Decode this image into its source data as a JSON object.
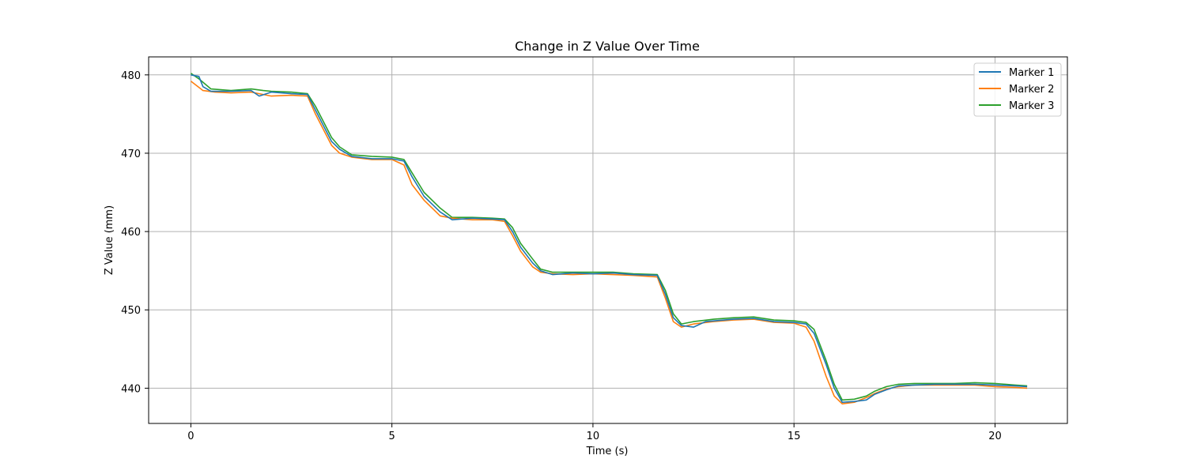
{
  "chart_data": {
    "type": "line",
    "title": "Change in Z Value Over Time",
    "xlabel": "Time (s)",
    "ylabel": "Z Value (mm)",
    "xlim": [
      -1.05,
      21.8
    ],
    "ylim": [
      435.5,
      482.3
    ],
    "xticks": [
      0,
      5,
      10,
      15,
      20
    ],
    "yticks": [
      440,
      450,
      460,
      470,
      480
    ],
    "grid": true,
    "legend_position": "top-right",
    "series": [
      {
        "name": "Marker 1",
        "color": "#1f77b4",
        "points": [
          [
            0,
            480
          ],
          [
            0.2,
            479.8
          ],
          [
            0.3,
            478.5
          ],
          [
            0.5,
            477.9
          ],
          [
            1.0,
            477.9
          ],
          [
            1.5,
            478.0
          ],
          [
            1.7,
            477.3
          ],
          [
            2.0,
            477.8
          ],
          [
            2.5,
            477.6
          ],
          [
            2.9,
            477.5
          ],
          [
            3.1,
            475.5
          ],
          [
            3.3,
            473.5
          ],
          [
            3.5,
            471.5
          ],
          [
            3.7,
            470.5
          ],
          [
            4.0,
            469.6
          ],
          [
            4.5,
            469.3
          ],
          [
            5.0,
            469.3
          ],
          [
            5.3,
            469.0
          ],
          [
            5.5,
            467.0
          ],
          [
            5.8,
            464.5
          ],
          [
            6.2,
            462.5
          ],
          [
            6.5,
            461.5
          ],
          [
            7.0,
            461.7
          ],
          [
            7.5,
            461.6
          ],
          [
            7.8,
            461.5
          ],
          [
            8.0,
            460.0
          ],
          [
            8.2,
            458.0
          ],
          [
            8.5,
            456.0
          ],
          [
            8.7,
            455.0
          ],
          [
            9.0,
            454.5
          ],
          [
            9.5,
            454.7
          ],
          [
            10.0,
            454.6
          ],
          [
            10.5,
            454.7
          ],
          [
            11.0,
            454.5
          ],
          [
            11.6,
            454.4
          ],
          [
            11.8,
            452.0
          ],
          [
            12.0,
            449.0
          ],
          [
            12.2,
            448.0
          ],
          [
            12.5,
            447.8
          ],
          [
            12.8,
            448.5
          ],
          [
            13.5,
            448.8
          ],
          [
            14.0,
            448.9
          ],
          [
            14.5,
            448.5
          ],
          [
            15.0,
            448.4
          ],
          [
            15.3,
            448.2
          ],
          [
            15.5,
            447.0
          ],
          [
            15.8,
            443.0
          ],
          [
            16.0,
            440.0
          ],
          [
            16.2,
            438.2
          ],
          [
            16.5,
            438.3
          ],
          [
            16.8,
            438.5
          ],
          [
            17.0,
            439.2
          ],
          [
            17.3,
            439.8
          ],
          [
            17.6,
            440.3
          ],
          [
            18.0,
            440.4
          ],
          [
            18.5,
            440.5
          ],
          [
            19.0,
            440.5
          ],
          [
            19.5,
            440.5
          ],
          [
            20.0,
            440.4
          ],
          [
            20.5,
            440.3
          ],
          [
            20.8,
            440.2
          ]
        ]
      },
      {
        "name": "Marker 2",
        "color": "#ff7f0e",
        "points": [
          [
            0,
            479.2
          ],
          [
            0.3,
            478.0
          ],
          [
            0.6,
            477.8
          ],
          [
            1.0,
            477.7
          ],
          [
            1.5,
            477.8
          ],
          [
            2.0,
            477.3
          ],
          [
            2.5,
            477.4
          ],
          [
            2.9,
            477.3
          ],
          [
            3.1,
            475.0
          ],
          [
            3.3,
            473.0
          ],
          [
            3.5,
            471.0
          ],
          [
            3.7,
            470.0
          ],
          [
            4.0,
            469.5
          ],
          [
            4.5,
            469.2
          ],
          [
            5.0,
            469.2
          ],
          [
            5.3,
            468.5
          ],
          [
            5.5,
            466.0
          ],
          [
            5.8,
            464.0
          ],
          [
            6.2,
            462.0
          ],
          [
            6.5,
            461.7
          ],
          [
            7.0,
            461.5
          ],
          [
            7.5,
            461.5
          ],
          [
            7.8,
            461.3
          ],
          [
            8.0,
            459.5
          ],
          [
            8.2,
            457.5
          ],
          [
            8.5,
            455.5
          ],
          [
            8.7,
            454.8
          ],
          [
            9.0,
            454.6
          ],
          [
            9.5,
            454.5
          ],
          [
            10.0,
            454.6
          ],
          [
            10.5,
            454.5
          ],
          [
            11.0,
            454.4
          ],
          [
            11.6,
            454.2
          ],
          [
            11.8,
            451.5
          ],
          [
            12.0,
            448.5
          ],
          [
            12.2,
            447.8
          ],
          [
            12.5,
            448.2
          ],
          [
            13.0,
            448.5
          ],
          [
            13.5,
            448.7
          ],
          [
            14.0,
            448.8
          ],
          [
            14.5,
            448.4
          ],
          [
            15.0,
            448.3
          ],
          [
            15.3,
            447.8
          ],
          [
            15.5,
            446.0
          ],
          [
            15.8,
            441.5
          ],
          [
            16.0,
            439.0
          ],
          [
            16.2,
            438.0
          ],
          [
            16.5,
            438.2
          ],
          [
            16.8,
            438.8
          ],
          [
            17.0,
            439.3
          ],
          [
            17.3,
            439.9
          ],
          [
            17.6,
            440.2
          ],
          [
            18.0,
            440.4
          ],
          [
            18.5,
            440.4
          ],
          [
            19.0,
            440.4
          ],
          [
            19.5,
            440.4
          ],
          [
            20.0,
            440.2
          ],
          [
            20.5,
            440.1
          ],
          [
            20.8,
            440.0
          ]
        ]
      },
      {
        "name": "Marker 3",
        "color": "#2ca02c",
        "points": [
          [
            0,
            480.2
          ],
          [
            0.2,
            479.5
          ],
          [
            0.5,
            478.2
          ],
          [
            1.0,
            478.0
          ],
          [
            1.5,
            478.2
          ],
          [
            1.8,
            478.0
          ],
          [
            2.0,
            477.9
          ],
          [
            2.5,
            477.8
          ],
          [
            2.9,
            477.6
          ],
          [
            3.1,
            476.0
          ],
          [
            3.3,
            474.0
          ],
          [
            3.5,
            472.0
          ],
          [
            3.7,
            470.8
          ],
          [
            4.0,
            469.8
          ],
          [
            4.5,
            469.6
          ],
          [
            5.0,
            469.5
          ],
          [
            5.3,
            469.2
          ],
          [
            5.5,
            467.5
          ],
          [
            5.8,
            465.0
          ],
          [
            6.2,
            463.0
          ],
          [
            6.5,
            461.8
          ],
          [
            7.0,
            461.8
          ],
          [
            7.5,
            461.7
          ],
          [
            7.8,
            461.6
          ],
          [
            8.0,
            460.5
          ],
          [
            8.2,
            458.5
          ],
          [
            8.5,
            456.5
          ],
          [
            8.7,
            455.2
          ],
          [
            9.0,
            454.8
          ],
          [
            9.5,
            454.8
          ],
          [
            10.0,
            454.8
          ],
          [
            10.5,
            454.8
          ],
          [
            11.0,
            454.6
          ],
          [
            11.6,
            454.5
          ],
          [
            11.8,
            452.5
          ],
          [
            12.0,
            449.5
          ],
          [
            12.2,
            448.2
          ],
          [
            12.5,
            448.5
          ],
          [
            13.0,
            448.8
          ],
          [
            13.5,
            449.0
          ],
          [
            14.0,
            449.1
          ],
          [
            14.5,
            448.7
          ],
          [
            15.0,
            448.6
          ],
          [
            15.3,
            448.4
          ],
          [
            15.5,
            447.5
          ],
          [
            15.8,
            443.5
          ],
          [
            16.0,
            440.5
          ],
          [
            16.2,
            438.5
          ],
          [
            16.5,
            438.6
          ],
          [
            16.8,
            439.0
          ],
          [
            17.0,
            439.6
          ],
          [
            17.3,
            440.2
          ],
          [
            17.6,
            440.5
          ],
          [
            18.0,
            440.6
          ],
          [
            18.5,
            440.6
          ],
          [
            19.0,
            440.6
          ],
          [
            19.5,
            440.7
          ],
          [
            20.0,
            440.6
          ],
          [
            20.5,
            440.4
          ],
          [
            20.8,
            440.3
          ]
        ]
      }
    ]
  }
}
